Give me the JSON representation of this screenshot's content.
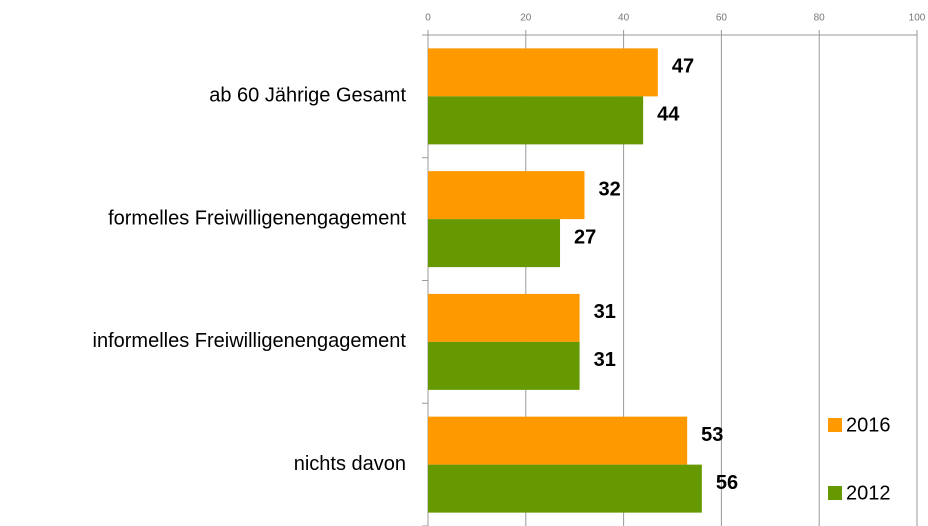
{
  "chart_data": {
    "type": "bar",
    "orientation": "horizontal",
    "categories": [
      "ab 60 Jährige Gesamt",
      "formelles Freiwilligenengagement",
      "informelles Freiwilligenengagement",
      "nichts davon"
    ],
    "series": [
      {
        "name": "2016",
        "color": "#ff9900",
        "values": [
          47,
          32,
          31,
          53
        ]
      },
      {
        "name": "2012",
        "color": "#669900",
        "values": [
          44,
          27,
          31,
          56
        ]
      }
    ],
    "xlim": [
      0,
      100
    ],
    "xticks": [
      0,
      20,
      40,
      60,
      80,
      100
    ],
    "grid": true,
    "legend": "lower right"
  }
}
